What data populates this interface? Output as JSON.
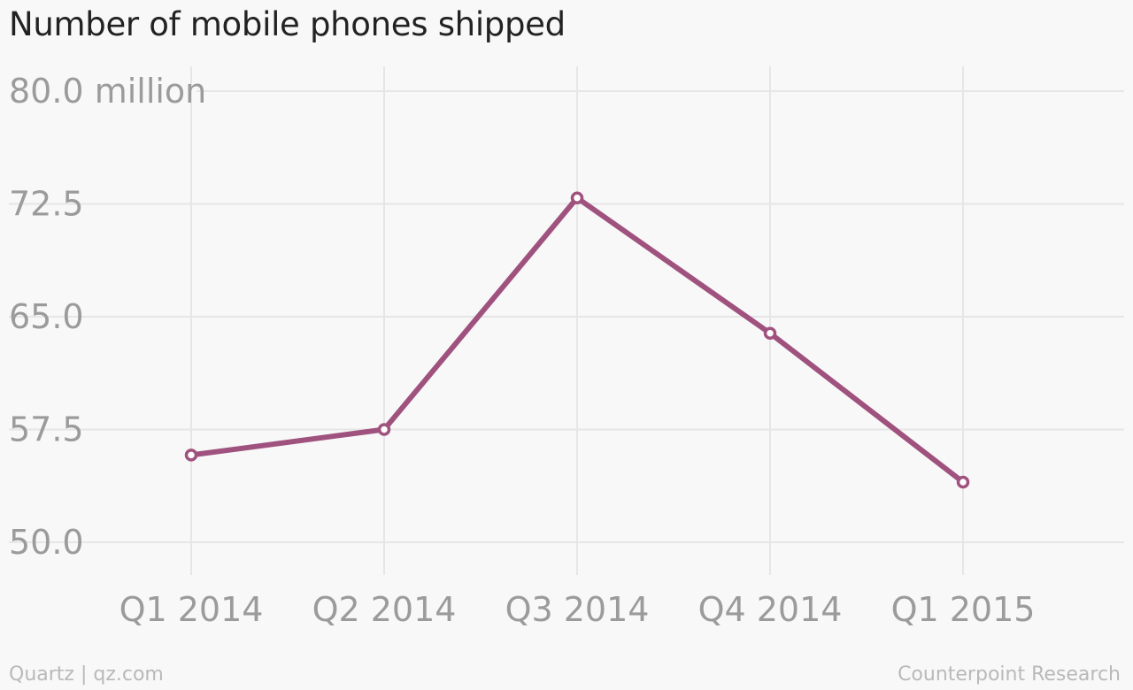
{
  "chart_data": {
    "type": "line",
    "title": "Number of mobile phones shipped",
    "categories": [
      "Q1 2014",
      "Q2 2014",
      "Q3 2014",
      "Q4 2014",
      "Q1 2015"
    ],
    "series": [
      {
        "name": "",
        "values": [
          55.8,
          57.5,
          72.9,
          63.9,
          54.0
        ]
      }
    ],
    "y_ticks": [
      50.0,
      57.5,
      65.0,
      72.5,
      80.0
    ],
    "y_tick_labels": [
      "50.0",
      "57.5",
      "65.0",
      "72.5",
      "80.0 million"
    ],
    "ylim": [
      50,
      80
    ],
    "xlabel": "",
    "ylabel": "",
    "grid": true,
    "colors": {
      "line": "#a0527f",
      "grid": "#e6e6e6",
      "tick_text": "#9b9b9b",
      "background": "#f8f8f8"
    }
  },
  "footer": {
    "credit": "Quartz | qz.com",
    "source": "Counterpoint Research"
  }
}
